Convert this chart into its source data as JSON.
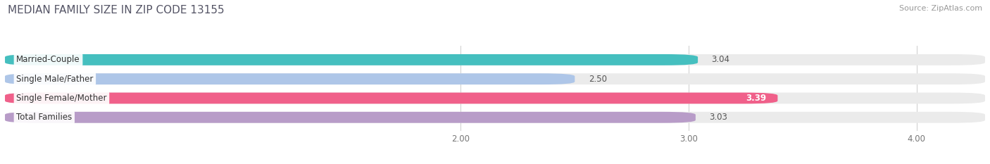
{
  "title": "MEDIAN FAMILY SIZE IN ZIP CODE 13155",
  "source": "Source: ZipAtlas.com",
  "categories": [
    "Married-Couple",
    "Single Male/Father",
    "Single Female/Mother",
    "Total Families"
  ],
  "values": [
    3.04,
    2.5,
    3.39,
    3.03
  ],
  "bar_colors": [
    "#45bfbf",
    "#aec6e8",
    "#f0608a",
    "#b89cc8"
  ],
  "bar_bg_color": "#ebebeb",
  "background_color": "#ffffff",
  "xlim_left": 0.0,
  "xlim_right": 4.3,
  "xstart": 0.0,
  "xticks": [
    2.0,
    3.0,
    4.0
  ],
  "xtick_labels": [
    "2.00",
    "3.00",
    "4.00"
  ],
  "bar_height": 0.58,
  "label_fontsize": 8.5,
  "value_fontsize": 8.5,
  "title_fontsize": 11,
  "source_fontsize": 8,
  "value_inside_color": "#ffffff",
  "value_inside_index": 2,
  "value_outside_color": "#555555"
}
